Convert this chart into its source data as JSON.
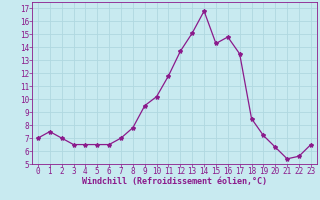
{
  "x": [
    0,
    1,
    2,
    3,
    4,
    5,
    6,
    7,
    8,
    9,
    10,
    11,
    12,
    13,
    14,
    15,
    16,
    17,
    18,
    19,
    20,
    21,
    22,
    23
  ],
  "y": [
    7.0,
    7.5,
    7.0,
    6.5,
    6.5,
    6.5,
    6.5,
    7.0,
    7.8,
    9.5,
    10.2,
    11.8,
    13.7,
    15.1,
    16.8,
    14.3,
    14.8,
    13.5,
    8.5,
    7.2,
    6.3,
    5.4,
    5.6,
    6.5
  ],
  "line_color": "#8b1a8b",
  "marker": "*",
  "marker_size": 3,
  "bg_color": "#c8eaf0",
  "grid_color": "#b0d8e0",
  "xlabel": "Windchill (Refroidissement éolien,°C)",
  "xlabel_color": "#8b1a8b",
  "xlabel_fontsize": 6.0,
  "tick_color": "#8b1a8b",
  "tick_fontsize": 5.5,
  "ylim": [
    5,
    17.5
  ],
  "xlim": [
    -0.5,
    23.5
  ],
  "yticks": [
    5,
    6,
    7,
    8,
    9,
    10,
    11,
    12,
    13,
    14,
    15,
    16,
    17
  ],
  "xticks": [
    0,
    1,
    2,
    3,
    4,
    5,
    6,
    7,
    8,
    9,
    10,
    11,
    12,
    13,
    14,
    15,
    16,
    17,
    18,
    19,
    20,
    21,
    22,
    23
  ]
}
